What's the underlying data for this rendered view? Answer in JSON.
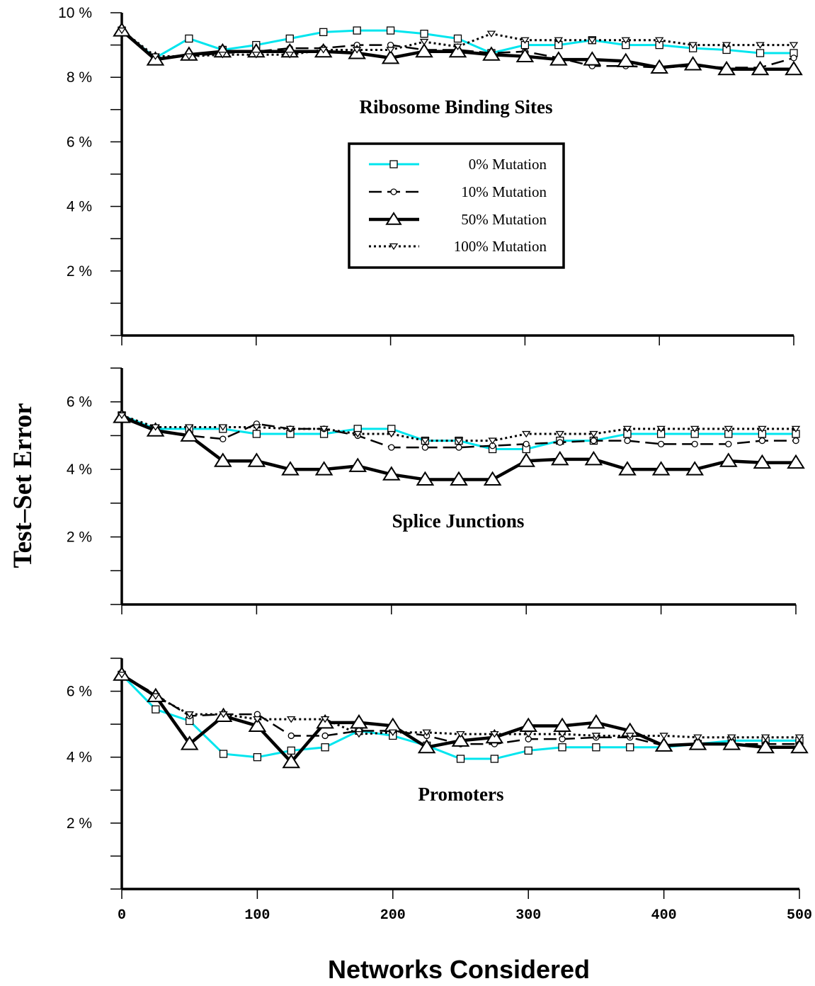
{
  "chart_data": {
    "type": "line",
    "ylabel": "Test–Set Error",
    "xlabel": "Networks Considered",
    "x": [
      0,
      25,
      50,
      75,
      100,
      125,
      150,
      175,
      200,
      225,
      250,
      275,
      300,
      325,
      350,
      375,
      400,
      425,
      450,
      475,
      500
    ],
    "x_ticks": [
      "0",
      "100",
      "200",
      "300",
      "400",
      "500"
    ],
    "x_tick_values": [
      0,
      100,
      200,
      300,
      400,
      500
    ],
    "xlim": [
      0,
      500
    ],
    "legend": {
      "placement": "inside top panel, center-right",
      "entries": [
        "0% Mutation",
        "10% Mutation",
        "50% Mutation",
        "100% Mutation"
      ]
    },
    "series_styles": [
      {
        "name": "0% Mutation",
        "color": "#00e5ee",
        "marker": "square"
      },
      {
        "name": "10% Mutation",
        "color": "#000000",
        "marker": "circle"
      },
      {
        "name": "50% Mutation",
        "color": "#000000",
        "marker": "triangle"
      },
      {
        "name": "100% Mutation",
        "color": "#000000",
        "marker": "triangle-down"
      }
    ],
    "panels": [
      {
        "title": "Ribosome Binding Sites",
        "ylim": [
          0,
          10
        ],
        "y_ticks": [
          "2 %",
          "4 %",
          "6 %",
          "8 %",
          "10 %"
        ],
        "y_tick_values": [
          2,
          4,
          6,
          8,
          10
        ],
        "series": [
          {
            "name": "0% Mutation",
            "values": [
              9.45,
              8.6,
              9.2,
              8.85,
              9.0,
              9.2,
              9.4,
              9.45,
              9.45,
              9.35,
              9.2,
              8.75,
              9.0,
              9.0,
              9.15,
              9.0,
              9.0,
              8.9,
              8.85,
              8.75,
              8.75
            ]
          },
          {
            "name": "10% Mutation",
            "values": [
              9.45,
              8.6,
              8.65,
              8.75,
              8.8,
              8.9,
              8.9,
              9.0,
              9.0,
              8.85,
              8.85,
              8.75,
              8.8,
              8.6,
              8.35,
              8.35,
              8.3,
              8.35,
              8.3,
              8.3,
              8.6
            ]
          },
          {
            "name": "50% Mutation",
            "values": [
              9.45,
              8.55,
              8.7,
              8.8,
              8.8,
              8.8,
              8.8,
              8.75,
              8.6,
              8.8,
              8.8,
              8.7,
              8.65,
              8.55,
              8.55,
              8.5,
              8.3,
              8.4,
              8.25,
              8.25,
              8.25
            ]
          },
          {
            "name": "100% Mutation",
            "values": [
              9.45,
              8.65,
              8.65,
              8.7,
              8.7,
              8.7,
              8.85,
              8.85,
              8.85,
              9.1,
              8.95,
              9.35,
              9.15,
              9.15,
              9.15,
              9.15,
              9.15,
              9.0,
              9.0,
              9.0,
              9.0
            ]
          }
        ]
      },
      {
        "title": "Splice Junctions",
        "ylim": [
          0,
          7
        ],
        "y_ticks": [
          "2 %",
          "4 %",
          "6 %"
        ],
        "y_tick_values": [
          2,
          4,
          6
        ],
        "series": [
          {
            "name": "0% Mutation",
            "values": [
              5.6,
              5.2,
              5.2,
              5.2,
              5.05,
              5.05,
              5.05,
              5.2,
              5.2,
              4.85,
              4.85,
              4.6,
              4.6,
              4.85,
              4.85,
              5.05,
              5.05,
              5.05,
              5.05,
              5.05,
              5.05
            ]
          },
          {
            "name": "10% Mutation",
            "values": [
              5.6,
              5.15,
              5.0,
              4.9,
              5.35,
              5.2,
              5.2,
              5.0,
              4.65,
              4.65,
              4.65,
              4.7,
              4.75,
              4.8,
              4.85,
              4.85,
              4.75,
              4.75,
              4.75,
              4.85,
              4.85
            ]
          },
          {
            "name": "50% Mutation",
            "values": [
              5.55,
              5.15,
              5.0,
              4.25,
              4.25,
              4.0,
              4.0,
              4.1,
              3.85,
              3.7,
              3.7,
              3.7,
              4.25,
              4.3,
              4.3,
              4.0,
              4.0,
              4.0,
              4.25,
              4.2,
              4.2
            ]
          },
          {
            "name": "100% Mutation",
            "values": [
              5.6,
              5.25,
              5.25,
              5.25,
              5.25,
              5.2,
              5.2,
              5.05,
              5.05,
              4.85,
              4.85,
              4.85,
              5.05,
              5.05,
              5.05,
              5.2,
              5.2,
              5.2,
              5.2,
              5.2,
              5.2
            ]
          }
        ]
      },
      {
        "title": "Promoters",
        "ylim": [
          0,
          7
        ],
        "y_ticks": [
          "2 %",
          "4 %",
          "6 %"
        ],
        "y_tick_values": [
          2,
          4,
          6
        ],
        "series": [
          {
            "name": "0% Mutation",
            "values": [
              6.5,
              5.45,
              5.1,
              4.1,
              4.0,
              4.2,
              4.3,
              4.8,
              4.65,
              4.35,
              3.95,
              3.95,
              4.2,
              4.3,
              4.3,
              4.3,
              4.3,
              4.4,
              4.5,
              4.5,
              4.5
            ]
          },
          {
            "name": "10% Mutation",
            "values": [
              6.5,
              5.9,
              5.25,
              5.3,
              5.3,
              4.65,
              4.65,
              4.8,
              4.8,
              4.65,
              4.4,
              4.4,
              4.55,
              4.55,
              4.6,
              4.6,
              4.35,
              4.4,
              4.4,
              4.4,
              4.4
            ]
          },
          {
            "name": "50% Mutation",
            "values": [
              6.5,
              5.85,
              4.4,
              5.25,
              4.95,
              3.85,
              5.05,
              5.05,
              4.95,
              4.3,
              4.5,
              4.6,
              4.95,
              4.95,
              5.05,
              4.8,
              4.35,
              4.4,
              4.4,
              4.3,
              4.3
            ]
          },
          {
            "name": "100% Mutation",
            "values": [
              6.5,
              5.85,
              5.3,
              5.3,
              5.15,
              5.15,
              5.15,
              4.7,
              4.75,
              4.75,
              4.7,
              4.7,
              4.7,
              4.7,
              4.65,
              4.65,
              4.65,
              4.6,
              4.6,
              4.6,
              4.6
            ]
          }
        ]
      }
    ]
  }
}
